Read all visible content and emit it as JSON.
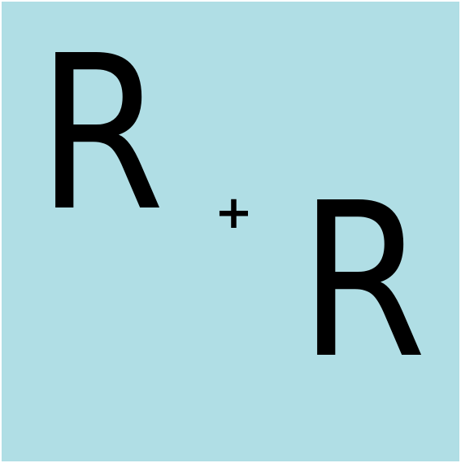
{
  "background_color": "#B0DEE5",
  "text_color": "#000000",
  "first_letter": "R",
  "operator": "+",
  "second_letter": "R"
}
